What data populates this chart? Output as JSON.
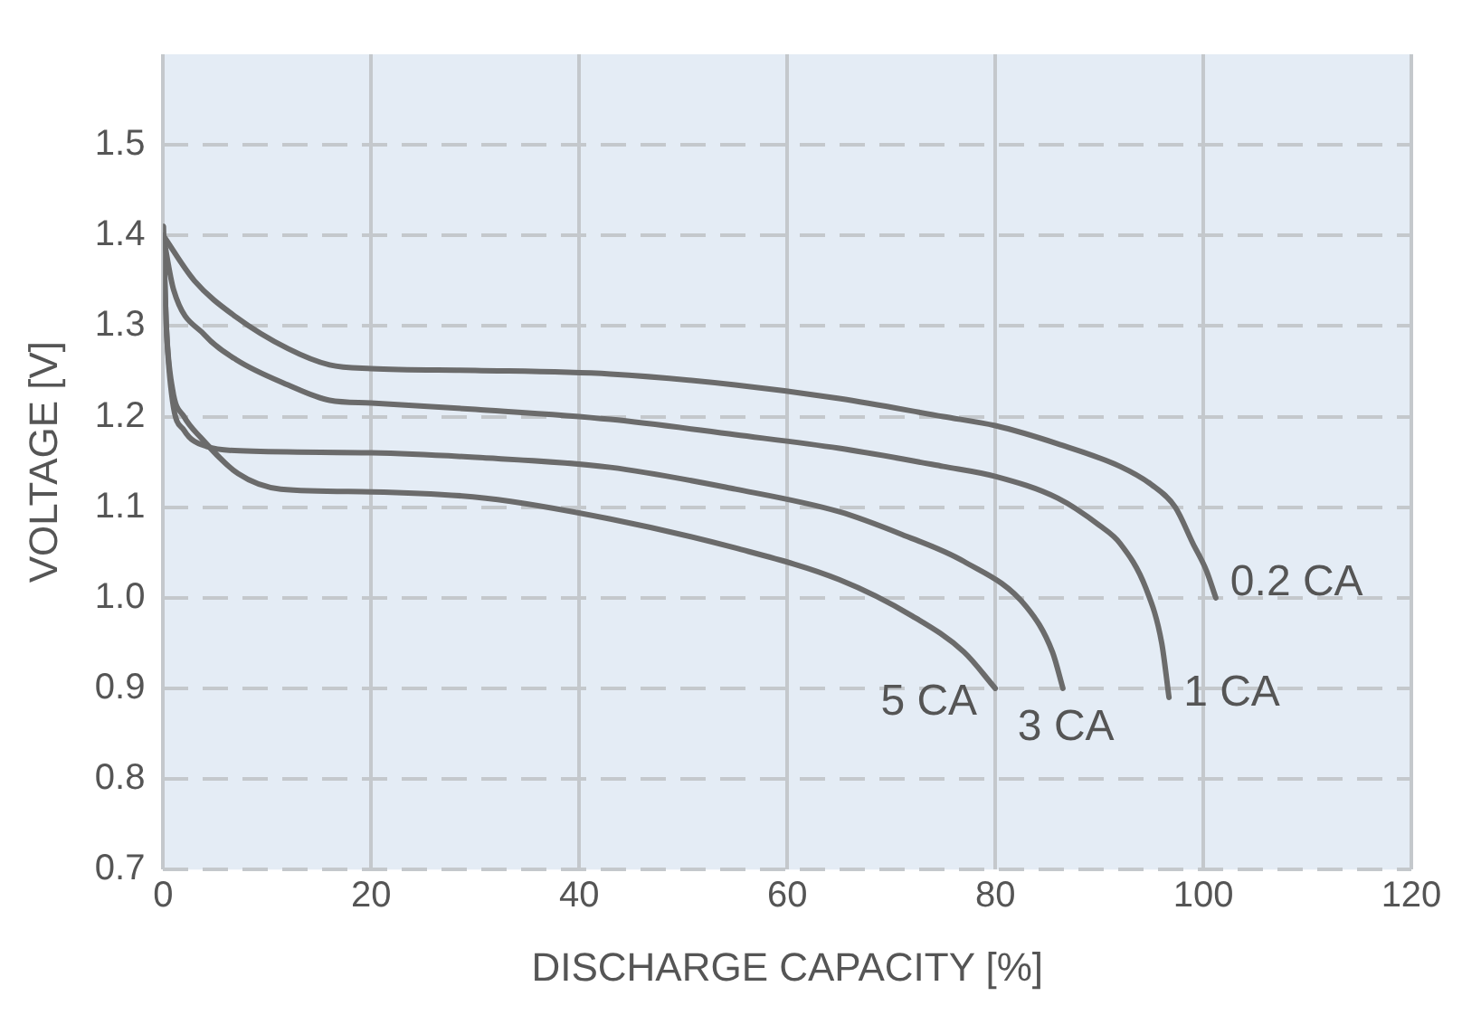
{
  "chart_data": {
    "type": "line",
    "xlabel": "DISCHARGE CAPACITY [%]",
    "ylabel": "VOLTAGE [V]",
    "xlim": [
      0,
      120
    ],
    "xticks": [
      0,
      20,
      40,
      60,
      80,
      100,
      120
    ],
    "ylim": [
      0.7,
      1.6
    ],
    "yticks": [
      0.7,
      0.8,
      0.9,
      {
        "value": 1,
        "label": "1.0"
      },
      1.1,
      1.2,
      1.3,
      1.4,
      1.5
    ],
    "grid": true,
    "legend": false,
    "marker": "none",
    "line_style": "solid",
    "series": [
      {
        "name": "0.2 CA",
        "color": "#6b6b6b",
        "x": [
          0,
          3,
          7,
          12,
          16,
          20,
          30,
          43,
          55,
          65,
          75,
          80,
          86,
          92,
          95,
          97.3,
          99,
          100.3,
          101.2
        ],
        "values": [
          1.4,
          1.35,
          1.31,
          1.275,
          1.257,
          1.253,
          1.251,
          1.247,
          1.235,
          1.22,
          1.2,
          1.19,
          1.17,
          1.145,
          1.125,
          1.1,
          1.06,
          1.03,
          1.0
        ]
      },
      {
        "name": "1 CA",
        "color": "#6b6b6b",
        "x": [
          0,
          1,
          4,
          7,
          12,
          16,
          20,
          30,
          43,
          55,
          65,
          75,
          80,
          86,
          90,
          92,
          94.5,
          96,
          96.7
        ],
        "values": [
          1.4,
          1.34,
          1.29,
          1.263,
          1.235,
          1.218,
          1.215,
          1.208,
          1.197,
          1.18,
          1.165,
          1.145,
          1.134,
          1.11,
          1.08,
          1.06,
          1.01,
          0.95,
          0.89
        ]
      },
      {
        "name": "3 CA",
        "color": "#6b6b6b",
        "x": [
          0,
          0.3,
          0.9,
          2,
          4.2,
          8,
          20,
          30,
          43,
          55,
          65,
          71,
          77,
          83,
          85.5,
          86.5
        ],
        "values": [
          1.41,
          1.3,
          1.217,
          1.185,
          1.167,
          1.162,
          1.16,
          1.155,
          1.144,
          1.12,
          1.095,
          1.07,
          1.04,
          0.99,
          0.94,
          0.9
        ]
      },
      {
        "name": "5 CA",
        "color": "#6b6b6b",
        "x": [
          0,
          0.3,
          0.9,
          2,
          3.6,
          7.2,
          11.3,
          20,
          31,
          43,
          55,
          65,
          72,
          77,
          80
        ],
        "values": [
          1.41,
          1.3,
          1.23,
          1.2,
          1.177,
          1.137,
          1.12,
          1.117,
          1.11,
          1.087,
          1.055,
          1.02,
          0.98,
          0.94,
          0.9
        ]
      }
    ]
  }
}
